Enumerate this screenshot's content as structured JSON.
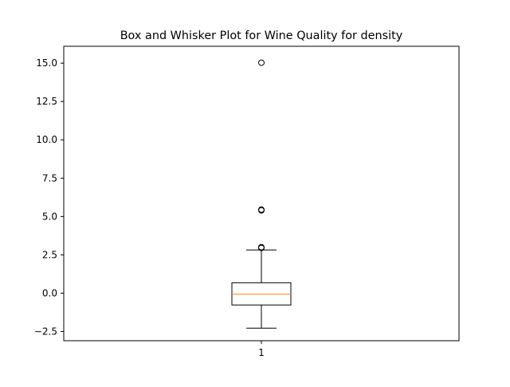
{
  "chart_data": {
    "type": "box",
    "title": "Box and Whisker Plot for Wine Quality for density",
    "xlabel": "",
    "ylabel": "",
    "categories": [
      "1"
    ],
    "ylim": [
      -3.1,
      16.1
    ],
    "yticks": [
      -2.5,
      0.0,
      2.5,
      5.0,
      7.5,
      10.0,
      12.5,
      15.0
    ],
    "ytick_labels": [
      "−2.5",
      "0.0",
      "2.5",
      "5.0",
      "7.5",
      "10.0",
      "12.5",
      "15.0"
    ],
    "boxes": [
      {
        "category": "1",
        "whisker_low": -2.28,
        "q1": -0.77,
        "median": -0.07,
        "q3": 0.68,
        "whisker_high": 2.82,
        "outliers": [
          2.95,
          3.0,
          5.4,
          5.45,
          15.03
        ]
      }
    ],
    "colors": {
      "box": "#000000",
      "median": "#ff7f0e"
    },
    "grid": false
  }
}
